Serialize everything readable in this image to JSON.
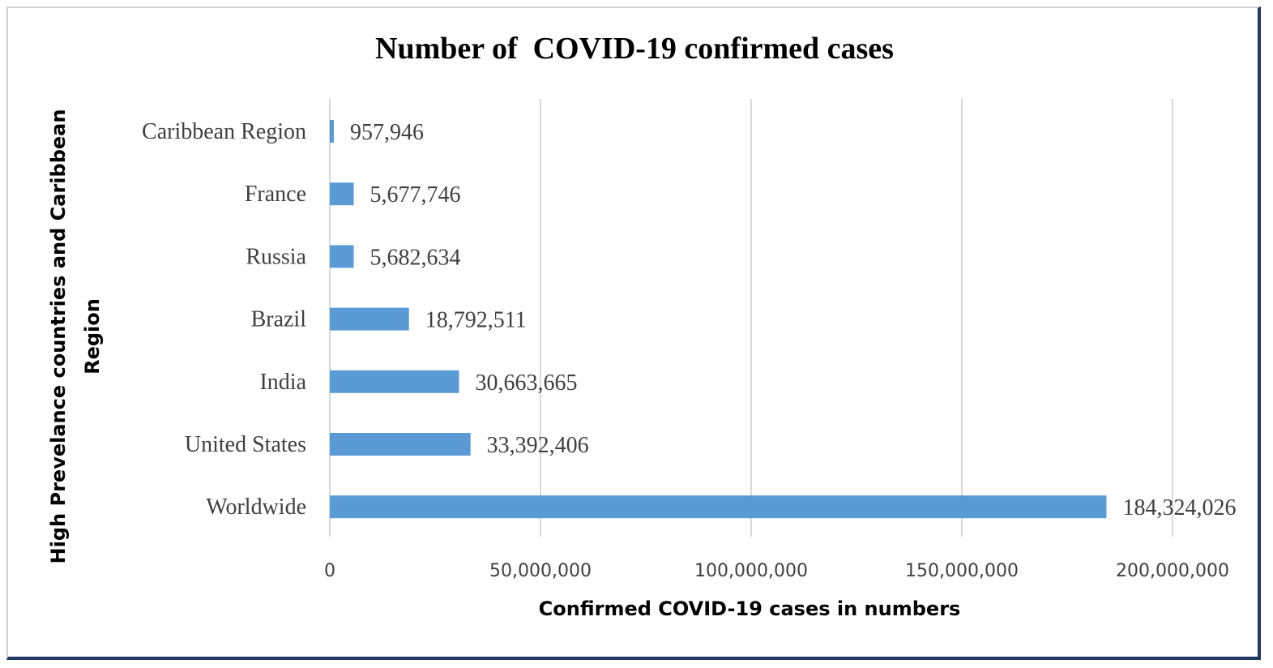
{
  "chart_data": {
    "type": "bar",
    "orientation": "horizontal",
    "title": "Number of  COVID-19 confirmed cases",
    "xlabel": "Confirmed COVID-19 cases in numbers",
    "ylabel_lines": [
      "High Prevelance countries and Caribbean",
      "Region"
    ],
    "categories": [
      "Caribbean Region",
      "France",
      "Russia",
      "Brazil",
      "India",
      "United States",
      "Worldwide"
    ],
    "values": [
      957946,
      5677746,
      5682634,
      18792511,
      30663665,
      33392406,
      184324026
    ],
    "value_labels": [
      "957,946",
      "5,677,746",
      "5,682,634",
      "18,792,511",
      "30,663,665",
      "33,392,406",
      "184,324,026"
    ],
    "xlim": [
      0,
      200000000
    ],
    "x_ticks": [
      0,
      50000000,
      100000000,
      150000000,
      200000000
    ],
    "x_tick_labels": [
      "0",
      "50,000,000",
      "100,000,000",
      "150,000,000",
      "200,000,000"
    ],
    "grid": "vertical",
    "legend": "none",
    "bar_color": "#5b9bd5"
  }
}
